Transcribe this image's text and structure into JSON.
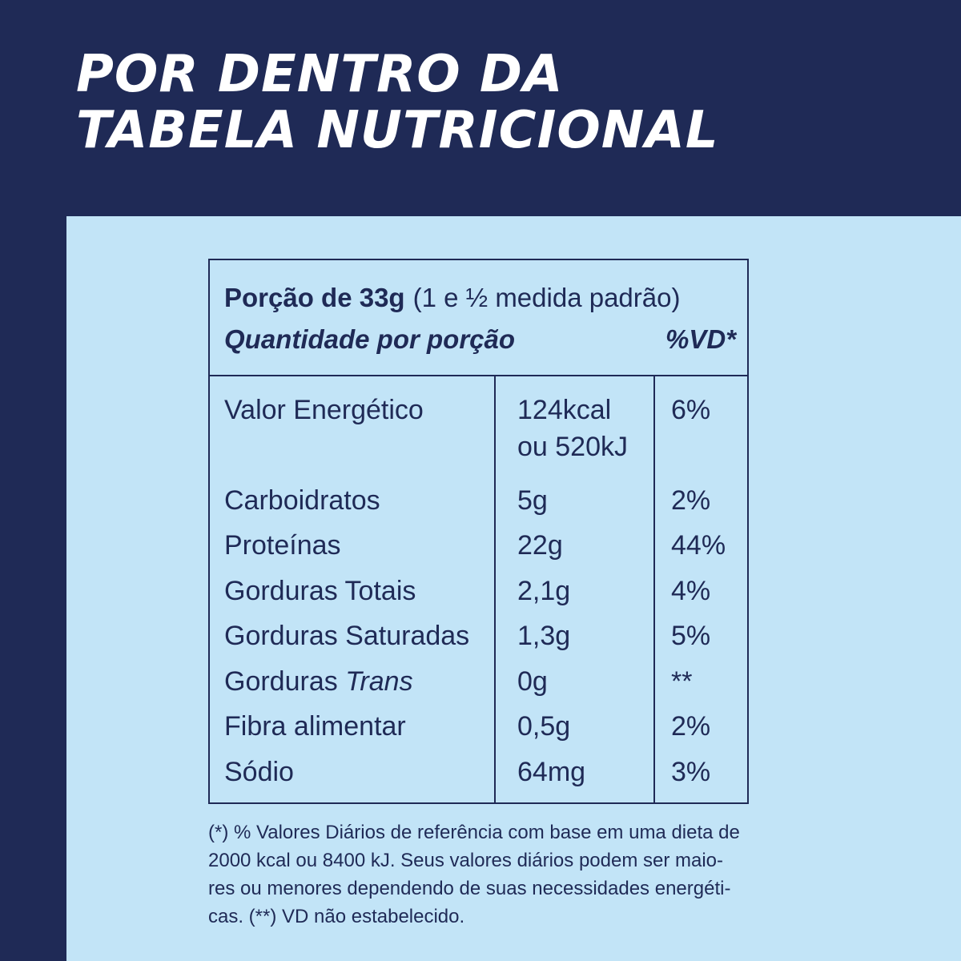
{
  "headline": {
    "line1": "POR DENTRO DA",
    "line2": "TABELA NUTRICIONAL"
  },
  "table": {
    "portion_bold": "Porção de 33g",
    "portion_sub": "(1 e ½ medida padrão)",
    "quantity_label": "Quantidade por porção",
    "vd_label": "%VD*",
    "rows": [
      {
        "name": "Valor Energético",
        "amount": "124kcal",
        "amount2": "ou 520kJ",
        "pct": "6%"
      },
      {
        "name": "Carboidratos",
        "amount": "5g",
        "pct": "2%"
      },
      {
        "name": "Proteínas",
        "amount": "22g",
        "pct": "44%"
      },
      {
        "name": "Gorduras Totais",
        "amount": "2,1g",
        "pct": "4%"
      },
      {
        "name": "Gorduras Saturadas",
        "amount": "1,3g",
        "pct": "5%"
      },
      {
        "name_prefix": "Gorduras",
        "name_italic": "Trans",
        "amount": "0g",
        "pct": "**"
      },
      {
        "name": "Fibra alimentar",
        "amount": "0,5g",
        "pct": "2%"
      },
      {
        "name": "Sódio",
        "amount": "64mg",
        "pct": "3%"
      }
    ]
  },
  "footnote": {
    "line1": "(*) % Valores Diários de referência com base em uma dieta de",
    "line2": "2000 kcal ou 8400 kJ. Seus valores diários podem ser maio-",
    "line3": "res ou menores dependendo de suas necessidades energéti-",
    "line4": "cas. (**) VD não estabelecido."
  },
  "colors": {
    "navy": "#1f2a56",
    "light_blue": "#c2e4f7",
    "white": "#ffffff"
  }
}
